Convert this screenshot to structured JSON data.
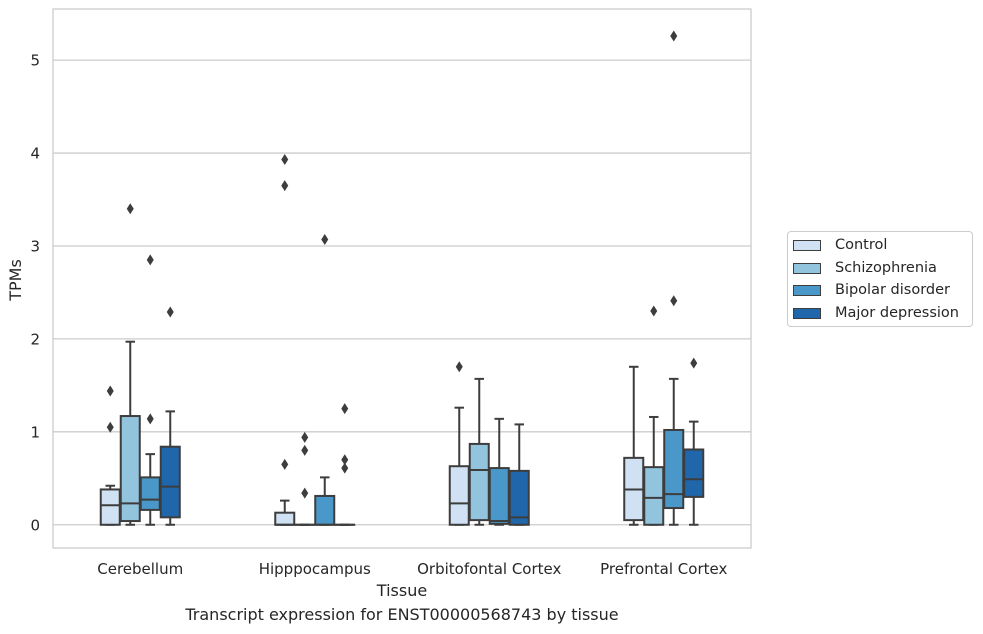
{
  "chart_data": {
    "type": "box",
    "xlabel": "Tissue",
    "ylabel": "TPMs",
    "ylim": [
      -0.25,
      5.55
    ],
    "yticks": [
      0,
      1,
      2,
      3,
      4,
      5
    ],
    "grid": "y",
    "legend_placement": "right",
    "categories": [
      "Cerebellum",
      "Hipppocampus",
      "Orbitofontal Cortex",
      "Prefrontal Cortex"
    ],
    "series": [
      {
        "name": "Control",
        "color": "#cfe1f2",
        "boxes": [
          {
            "whislo": 0.0,
            "q1": 0.0,
            "med": 0.21,
            "q3": 0.38,
            "whishi": 0.42,
            "fliers": [
              1.05,
              1.44
            ]
          },
          {
            "whislo": 0.0,
            "q1": 0.0,
            "med": 0.0,
            "q3": 0.13,
            "whishi": 0.26,
            "fliers": [
              0.65,
              3.65,
              3.93
            ]
          },
          {
            "whislo": 0.0,
            "q1": 0.0,
            "med": 0.23,
            "q3": 0.63,
            "whishi": 1.26,
            "fliers": [
              1.7
            ]
          },
          {
            "whislo": 0.0,
            "q1": 0.05,
            "med": 0.38,
            "q3": 0.72,
            "whishi": 1.7,
            "fliers": []
          }
        ]
      },
      {
        "name": "Schizophrenia",
        "color": "#93c4de",
        "boxes": [
          {
            "whislo": 0.0,
            "q1": 0.04,
            "med": 0.23,
            "q3": 1.17,
            "whishi": 1.97,
            "fliers": [
              3.4
            ]
          },
          {
            "whislo": 0.0,
            "q1": 0.0,
            "med": 0.0,
            "q3": 0.0,
            "whishi": 0.0,
            "fliers": [
              0.34,
              0.8,
              0.94
            ]
          },
          {
            "whislo": 0.0,
            "q1": 0.05,
            "med": 0.59,
            "q3": 0.87,
            "whishi": 1.57,
            "fliers": []
          },
          {
            "whislo": 0.0,
            "q1": 0.0,
            "med": 0.29,
            "q3": 0.62,
            "whishi": 1.16,
            "fliers": [
              2.3
            ]
          }
        ]
      },
      {
        "name": "Bipolar disorder",
        "color": "#4a98c9",
        "boxes": [
          {
            "whislo": 0.0,
            "q1": 0.16,
            "med": 0.27,
            "q3": 0.51,
            "whishi": 0.76,
            "fliers": [
              1.14,
              2.85
            ]
          },
          {
            "whislo": 0.0,
            "q1": 0.0,
            "med": 0.0,
            "q3": 0.31,
            "whishi": 0.51,
            "fliers": [
              3.07
            ]
          },
          {
            "whislo": 0.0,
            "q1": 0.01,
            "med": 0.04,
            "q3": 0.61,
            "whishi": 1.14,
            "fliers": []
          },
          {
            "whislo": 0.0,
            "q1": 0.18,
            "med": 0.33,
            "q3": 1.02,
            "whishi": 1.57,
            "fliers": [
              2.41,
              5.26
            ]
          }
        ]
      },
      {
        "name": "Major depression",
        "color": "#1f66ab",
        "boxes": [
          {
            "whislo": 0.0,
            "q1": 0.08,
            "med": 0.41,
            "q3": 0.84,
            "whishi": 1.22,
            "fliers": [
              2.29
            ]
          },
          {
            "whislo": 0.0,
            "q1": 0.0,
            "med": 0.0,
            "q3": 0.0,
            "whishi": 0.0,
            "fliers": [
              0.61,
              0.7,
              1.25
            ]
          },
          {
            "whislo": 0.0,
            "q1": 0.0,
            "med": 0.08,
            "q3": 0.58,
            "whishi": 1.08,
            "fliers": []
          },
          {
            "whislo": 0.0,
            "q1": 0.3,
            "med": 0.49,
            "q3": 0.81,
            "whishi": 1.11,
            "fliers": [
              1.74
            ]
          }
        ]
      }
    ]
  },
  "caption": "Transcript expression for ENST00000568743 by tissue"
}
